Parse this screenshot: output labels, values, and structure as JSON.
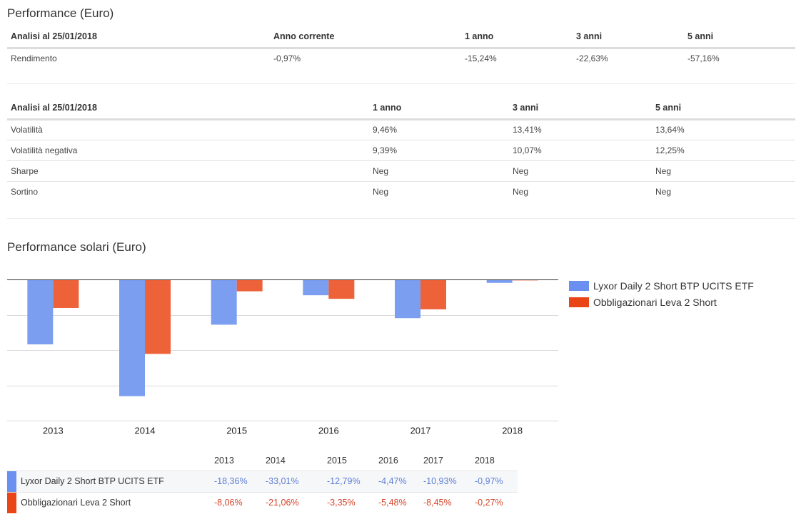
{
  "performance": {
    "title": "Performance (Euro)",
    "headers": [
      "Analisi al 25/01/2018",
      "Anno corrente",
      "1 anno",
      "3 anni",
      "5 anni"
    ],
    "rows": [
      {
        "label": "Rendimento",
        "values": [
          "-0,97%",
          "-15,24%",
          "-22,63%",
          "-57,16%"
        ]
      }
    ]
  },
  "risk": {
    "headers": [
      "Analisi al 25/01/2018",
      "1 anno",
      "3 anni",
      "5 anni"
    ],
    "rows": [
      {
        "label": "Volatilità",
        "values": [
          "9,46%",
          "13,41%",
          "13,64%"
        ]
      },
      {
        "label": "Volatilità negativa",
        "values": [
          "9,39%",
          "10,07%",
          "12,25%"
        ]
      },
      {
        "label": "Sharpe",
        "values": [
          "Neg",
          "Neg",
          "Neg"
        ]
      },
      {
        "label": "Sortino",
        "values": [
          "Neg",
          "Neg",
          "Neg"
        ]
      }
    ]
  },
  "solar": {
    "title": "Performance solari (Euro)"
  },
  "chart_data": {
    "type": "bar",
    "title": "Performance solari (Euro)",
    "xlabel": "",
    "ylabel": "",
    "categories": [
      "2013",
      "2014",
      "2015",
      "2016",
      "2017",
      "2018"
    ],
    "series": [
      {
        "name": "Lyxor Daily 2 Short BTP UCITS ETF",
        "color": "#7b9ef0",
        "legend_color": "#6a8ff0",
        "values": [
          -18.36,
          -33.01,
          -12.79,
          -4.47,
          -10.93,
          -0.97
        ]
      },
      {
        "name": "Obbligazionari Leva 2 Short",
        "color": "#ee6239",
        "legend_color": "#ea4516",
        "values": [
          -8.06,
          -21.06,
          -3.35,
          -5.48,
          -8.45,
          -0.27
        ]
      }
    ],
    "ylim": [
      -40,
      0
    ],
    "ygrid_step": 10,
    "grid": true,
    "y_tick_labels_visible": false,
    "legend": "right"
  },
  "data_table": {
    "years": [
      "2013",
      "2014",
      "2015",
      "2016",
      "2017",
      "2018"
    ],
    "rows": [
      {
        "name": "Lyxor Daily 2 Short BTP UCITS ETF",
        "values": [
          "-18,36%",
          "-33,01%",
          "-12,79%",
          "-4,47%",
          "-10,93%",
          "-0,97%"
        ]
      },
      {
        "name": "Obbligazionari Leva 2 Short",
        "values": [
          "-8,06%",
          "-21,06%",
          "-3,35%",
          "-5,48%",
          "-8,45%",
          "-0,27%"
        ]
      }
    ]
  }
}
